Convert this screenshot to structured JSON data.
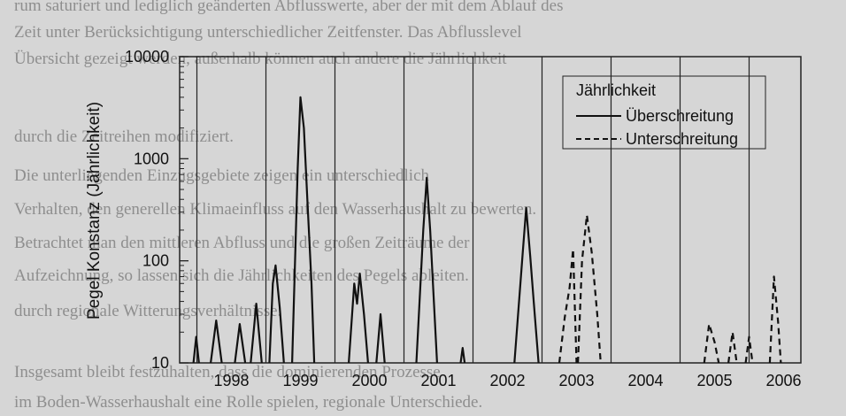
{
  "background_text": [
    "rum saturiert und lediglich geänderten Abflusswerte, aber der mit dem Ablauf des",
    "Zeit unter Berücksichtigung unterschiedlicher Zeitfenster. Das Abflusslevel",
    "Übersicht gezeigt werden, außerhalb können auch andere die Jährlichkeit",
    "durch die Zeitreihen modifiziert.",
    "Die unterliegenden Einzugsgebiete zeigen ein unterschiedlich",
    "Verhalten, den generellen Klimaeinfluss auf den Wasserhaushalt zu bewerten.",
    "Betrachtet man den mittleren Abfluss und die großen Zeiträume der",
    "Aufzeichnung, so lassen sich die Jährlichkeiten des Pegels ableiten.",
    "durch regionale Witterungsverhältnisse.",
    "Insgesamt bleibt festzuhalten, dass die dominierenden Prozesse",
    "im Boden-Wasserhaushalt eine Rolle spielen, regionale Unterschiede."
  ],
  "chart_data": {
    "type": "line",
    "title": "",
    "xlabel": "",
    "ylabel": "Pegel Konstanz (Jährlichkeit)",
    "yscale": "log",
    "ylim": [
      10,
      10000
    ],
    "y_ticks": [
      10,
      100,
      1000,
      10000
    ],
    "y_tick_labels": [
      "10",
      "100",
      "1000",
      "10000"
    ],
    "x_range": [
      1997.75,
      2006.75
    ],
    "year_boundaries": [
      1998,
      1999,
      2000,
      2001,
      2002,
      2003,
      2004,
      2005,
      2006
    ],
    "categories": [
      "1998",
      "1999",
      "2000",
      "2001",
      "2002",
      "2003",
      "2004",
      "2005",
      "2006"
    ],
    "legend": {
      "title": "Jährlichkeit",
      "position": "top-right",
      "entries": [
        "Überschreitung",
        "Unterschreitung"
      ]
    },
    "series": [
      {
        "name": "Überschreitung",
        "style": "solid",
        "segments": [
          [
            [
              1997.95,
              10
            ],
            [
              1997.99,
              18
            ],
            [
              1998.03,
              10
            ]
          ],
          [
            [
              1998.2,
              10
            ],
            [
              1998.28,
              26
            ],
            [
              1998.36,
              10
            ]
          ],
          [
            [
              1998.55,
              10
            ],
            [
              1998.62,
              24
            ],
            [
              1998.7,
              10
            ]
          ],
          [
            [
              1998.78,
              10
            ],
            [
              1998.86,
              38
            ],
            [
              1998.94,
              10
            ]
          ],
          [
            [
              1999.05,
              10
            ],
            [
              1999.1,
              60
            ],
            [
              1999.14,
              90
            ],
            [
              1999.2,
              35
            ],
            [
              1999.26,
              10
            ]
          ],
          [
            [
              1999.38,
              10
            ],
            [
              1999.46,
              800
            ],
            [
              1999.5,
              4000
            ],
            [
              1999.55,
              2000
            ],
            [
              1999.6,
              400
            ],
            [
              1999.66,
              60
            ],
            [
              1999.7,
              10
            ]
          ],
          [
            [
              2000.2,
              10
            ],
            [
              2000.28,
              60
            ],
            [
              2000.32,
              38
            ],
            [
              2000.36,
              75
            ],
            [
              2000.42,
              30
            ],
            [
              2000.48,
              10
            ]
          ],
          [
            [
              2000.6,
              10
            ],
            [
              2000.66,
              30
            ],
            [
              2000.72,
              10
            ]
          ],
          [
            [
              2001.18,
              10
            ],
            [
              2001.28,
              200
            ],
            [
              2001.33,
              650
            ],
            [
              2001.38,
              200
            ],
            [
              2001.48,
              10
            ]
          ],
          [
            [
              2001.82,
              10
            ],
            [
              2001.85,
              14
            ],
            [
              2001.88,
              10
            ]
          ],
          [
            [
              2002.6,
              10
            ],
            [
              2002.72,
              120
            ],
            [
              2002.77,
              330
            ],
            [
              2002.83,
              110
            ],
            [
              2002.88,
              40
            ],
            [
              2002.95,
              10
            ]
          ]
        ]
      },
      {
        "name": "Unterschreitung",
        "style": "dashed",
        "segments": [
          [
            [
              2003.25,
              10
            ],
            [
              2003.33,
              28
            ],
            [
              2003.4,
              55
            ],
            [
              2003.45,
              130
            ],
            [
              2003.5,
              10
            ]
          ],
          [
            [
              2003.52,
              10
            ],
            [
              2003.58,
              100
            ],
            [
              2003.65,
              280
            ],
            [
              2003.72,
              120
            ],
            [
              2003.8,
              30
            ],
            [
              2003.85,
              10
            ]
          ],
          [
            [
              2005.35,
              10
            ],
            [
              2005.42,
              24
            ],
            [
              2005.5,
              16
            ],
            [
              2005.56,
              10
            ]
          ],
          [
            [
              2005.7,
              10
            ],
            [
              2005.76,
              20
            ],
            [
              2005.82,
              10
            ]
          ],
          [
            [
              2005.95,
              10
            ],
            [
              2006.0,
              18
            ],
            [
              2006.05,
              10
            ]
          ],
          [
            [
              2006.3,
              10
            ],
            [
              2006.36,
              70
            ],
            [
              2006.42,
              25
            ],
            [
              2006.46,
              10
            ]
          ]
        ]
      }
    ]
  }
}
